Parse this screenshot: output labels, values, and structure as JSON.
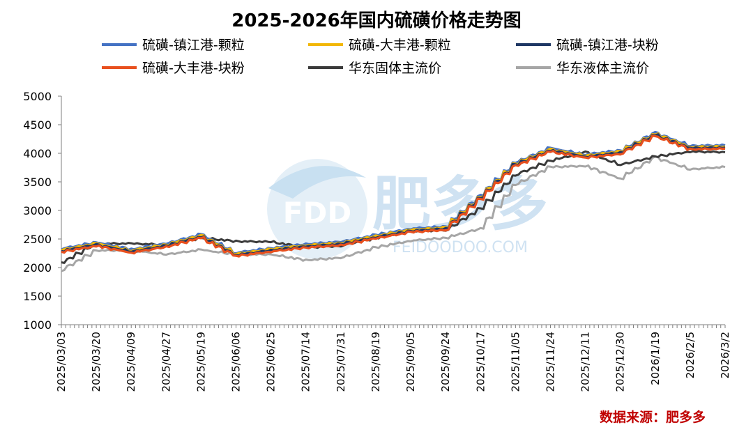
{
  "chart_data": {
    "type": "line",
    "title": "2025-2026年国内硫磺价格走势图",
    "xlabel": "",
    "ylabel": "",
    "ylim": [
      1000,
      5000
    ],
    "yticks": [
      1000,
      1500,
      2000,
      2500,
      3000,
      3500,
      4000,
      4500,
      5000
    ],
    "grid": false,
    "legend_position": "top",
    "categories": [
      "2025/03/03",
      "2025/03/20",
      "2025/04/09",
      "2025/04/27",
      "2025/05/19",
      "2025/06/06",
      "2025/06/25",
      "2025/07/14",
      "2025/07/31",
      "2025/08/19",
      "2025/09/05",
      "2025/09/24",
      "2025/10/17",
      "2025/11/05",
      "2025/11/24",
      "2025/12/11",
      "2025/12/30",
      "2026/1/19",
      "2026/2/5",
      "2026/3/2"
    ],
    "series": [
      {
        "name": "硫磺-镇江港-颗粒",
        "color": "#4472C4",
        "values": [
          2330,
          2440,
          2320,
          2420,
          2580,
          2260,
          2340,
          2410,
          2450,
          2570,
          2680,
          2720,
          3260,
          3840,
          4090,
          3980,
          4050,
          4360,
          4130,
          4140
        ]
      },
      {
        "name": "硫磺-大丰港-颗粒",
        "color": "#F2B705",
        "values": [
          2310,
          2420,
          2300,
          2400,
          2560,
          2240,
          2320,
          2390,
          2430,
          2550,
          2660,
          2700,
          3240,
          3820,
          4070,
          3960,
          4030,
          4340,
          4110,
          4120
        ]
      },
      {
        "name": "硫磺-镇江港-块粉",
        "color": "#1F3864",
        "values": [
          2290,
          2400,
          2280,
          2380,
          2540,
          2220,
          2300,
          2370,
          2410,
          2530,
          2640,
          2680,
          3220,
          3800,
          4050,
          3940,
          4010,
          4320,
          4090,
          4100
        ]
      },
      {
        "name": "硫磺-大丰港-块粉",
        "color": "#E8501E",
        "values": [
          2270,
          2380,
          2260,
          2360,
          2520,
          2200,
          2280,
          2350,
          2390,
          2510,
          2620,
          2660,
          3200,
          3780,
          4030,
          3920,
          3990,
          4300,
          4070,
          4080
        ]
      },
      {
        "name": "华东固体主流价",
        "color": "#3A3A3A",
        "values": [
          2080,
          2420,
          2420,
          2400,
          2520,
          2460,
          2450,
          2350,
          2380,
          2520,
          2640,
          2650,
          3030,
          3620,
          3870,
          4020,
          3800,
          3940,
          4030,
          4020
        ]
      },
      {
        "name": "华东液体主流价",
        "color": "#A6A6A6",
        "values": [
          1950,
          2300,
          2300,
          2230,
          2310,
          2230,
          2230,
          2130,
          2170,
          2350,
          2470,
          2520,
          2680,
          3450,
          3760,
          3780,
          3560,
          3930,
          3720,
          3760
        ]
      }
    ],
    "watermark": "肥多多",
    "watermark_logo_text": "FDD",
    "watermark_url": "FEIDOODOO.COM",
    "source": "数据来源：肥多多"
  }
}
